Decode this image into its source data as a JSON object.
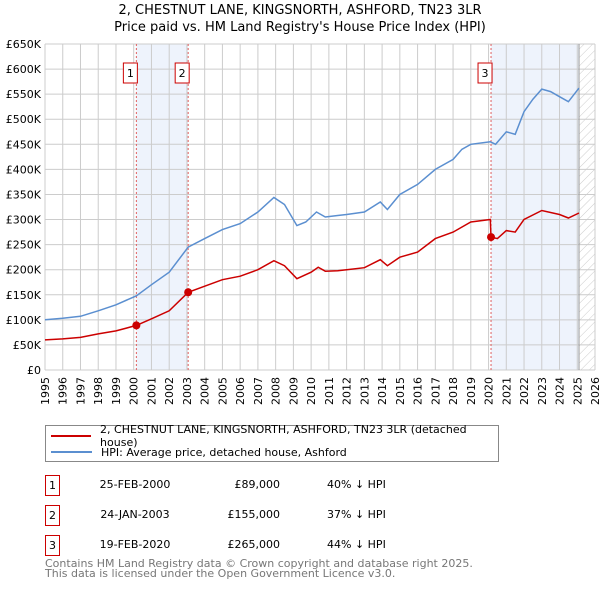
{
  "chart_data": {
    "type": "line",
    "title": "2, CHESTNUT LANE, KINGSNORTH, ASHFORD, TN23 3LR",
    "subtitle": "Price paid vs. HM Land Registry's House Price Index (HPI)",
    "xlim": [
      1995,
      2026
    ],
    "ylim": [
      0,
      650000
    ],
    "x_ticks": [
      "1995",
      "1996",
      "1997",
      "1998",
      "1999",
      "2000",
      "2001",
      "2002",
      "2003",
      "2004",
      "2005",
      "2006",
      "2007",
      "2008",
      "2009",
      "2010",
      "2011",
      "2012",
      "2013",
      "2014",
      "2015",
      "2016",
      "2017",
      "2018",
      "2019",
      "2020",
      "2021",
      "2022",
      "2023",
      "2024",
      "2025",
      "2026"
    ],
    "y_ticks": [
      "£0",
      "£50K",
      "£100K",
      "£150K",
      "£200K",
      "£250K",
      "£300K",
      "£350K",
      "£400K",
      "£450K",
      "£500K",
      "£550K",
      "£600K",
      "£650K"
    ],
    "grid": true,
    "series": [
      {
        "name": "2, CHESTNUT LANE, KINGSNORTH, ASHFORD, TN23 3LR (detached house)",
        "color": "#cc0000",
        "x": [
          1995,
          1996,
          1997,
          1998,
          1999,
          2000.15,
          2001,
          2002,
          2003.07,
          2004,
          2005,
          2006,
          2007,
          2007.9,
          2008.5,
          2009.2,
          2010,
          2010.4,
          2010.8,
          2011.5,
          2012,
          2013,
          2013.9,
          2014.3,
          2015,
          2016,
          2017,
          2018,
          2019,
          2020.1,
          2020.14,
          2020.5,
          2021,
          2021.5,
          2022,
          2023,
          2024,
          2024.5,
          2025.1
        ],
        "y": [
          60000,
          62000,
          65000,
          72000,
          78000,
          89000,
          102000,
          118000,
          155000,
          167000,
          180000,
          187000,
          200000,
          218000,
          208000,
          182000,
          195000,
          205000,
          197000,
          198000,
          200000,
          204000,
          220000,
          208000,
          225000,
          235000,
          262000,
          275000,
          295000,
          300000,
          265000,
          262000,
          278000,
          275000,
          300000,
          318000,
          310000,
          303000,
          313000
        ]
      },
      {
        "name": "HPI: Average price, detached house, Ashford",
        "color": "#5b8fd0",
        "x": [
          1995,
          1996,
          1997,
          1998,
          1999,
          2000.15,
          2001,
          2002,
          2003.07,
          2004,
          2005,
          2006,
          2007,
          2007.9,
          2008.5,
          2009.2,
          2009.7,
          2010.3,
          2010.8,
          2011.5,
          2012,
          2013,
          2013.9,
          2014.3,
          2015,
          2016,
          2017,
          2018,
          2018.5,
          2019,
          2020.1,
          2020.4,
          2021,
          2021.5,
          2022,
          2022.5,
          2023,
          2023.5,
          2024,
          2024.5,
          2025.1
        ],
        "y": [
          100000,
          103000,
          107000,
          118000,
          130000,
          148000,
          170000,
          195000,
          245000,
          262000,
          280000,
          292000,
          315000,
          344000,
          330000,
          288000,
          295000,
          315000,
          305000,
          308000,
          310000,
          315000,
          335000,
          320000,
          350000,
          370000,
          400000,
          420000,
          440000,
          450000,
          455000,
          450000,
          475000,
          470000,
          515000,
          540000,
          560000,
          555000,
          545000,
          535000,
          562000
        ]
      }
    ],
    "sales": [
      {
        "label": "1",
        "x": 2000.15,
        "y": 89000,
        "date": "25-FEB-2000",
        "price": "£89,000",
        "hpi": "40% ↓ HPI"
      },
      {
        "label": "2",
        "x": 2003.07,
        "y": 155000,
        "date": "24-JAN-2003",
        "price": "£155,000",
        "hpi": "37% ↓ HPI"
      },
      {
        "label": "3",
        "x": 2020.14,
        "y": 265000,
        "date": "19-FEB-2020",
        "price": "£265,000",
        "hpi": "44% ↓ HPI"
      }
    ],
    "shaded_ranges": [
      [
        2000.15,
        2003.07
      ],
      [
        2020.14,
        2025.1
      ]
    ],
    "forecast_start": 2025.1,
    "legend": "below"
  },
  "title_line1": "2, CHESTNUT LANE, KINGSNORTH, ASHFORD, TN23 3LR",
  "title_line2": "Price paid vs. HM Land Registry's House Price Index (HPI)",
  "legend": {
    "property": "2, CHESTNUT LANE, KINGSNORTH, ASHFORD, TN23 3LR (detached house)",
    "hpi": "HPI: Average price, detached house, Ashford"
  },
  "footer": {
    "line1": "Contains HM Land Registry data © Crown copyright and database right 2025.",
    "line2": "This data is licensed under the Open Government Licence v3.0."
  }
}
